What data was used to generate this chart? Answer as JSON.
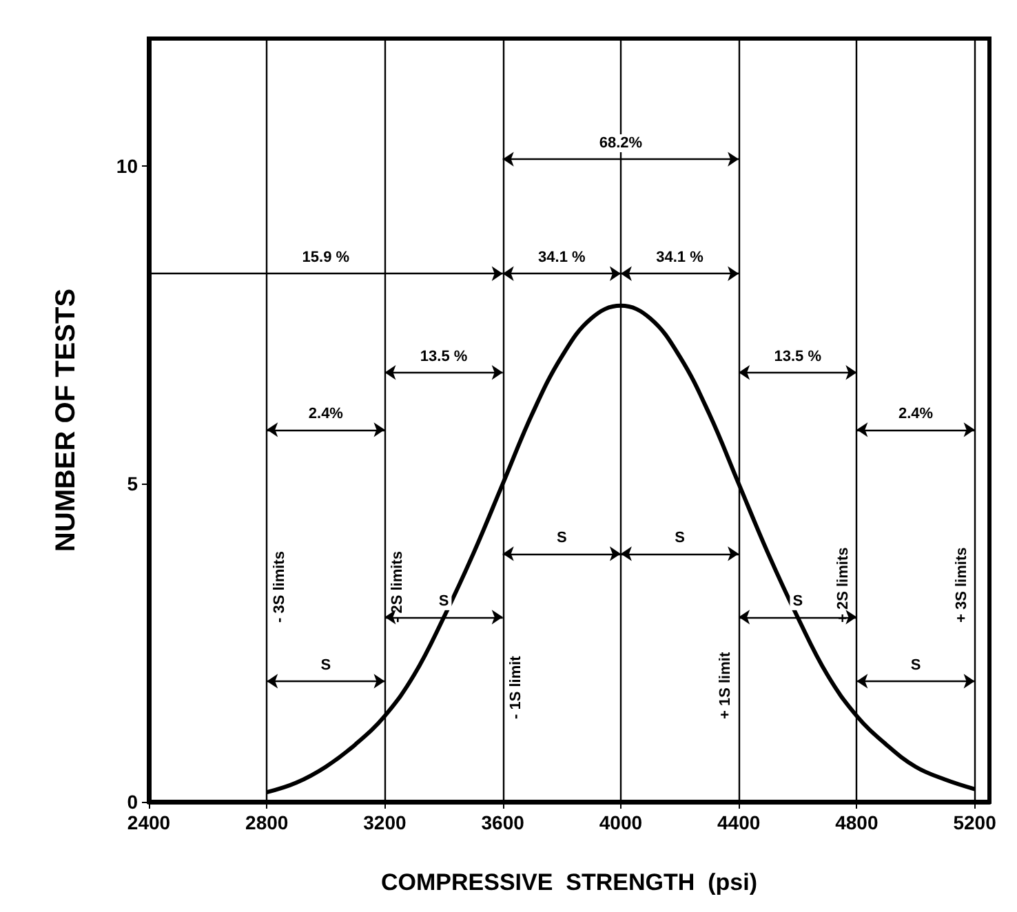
{
  "chart_data": {
    "type": "line",
    "xlabel": "COMPRESSIVE  STRENGTH  (psi)",
    "ylabel": "NUMBER OF TESTS",
    "x": [
      2800,
      2900,
      3000,
      3100,
      3200,
      3300,
      3400,
      3500,
      3600,
      3700,
      3800,
      3900,
      4000,
      4100,
      4200,
      4300,
      4400,
      4500,
      4600,
      4700,
      4800,
      4900,
      5000,
      5100,
      5200
    ],
    "series": [
      {
        "color": "#000000",
        "values": [
          0.15,
          0.3,
          0.55,
          0.9,
          1.35,
          2.0,
          2.9,
          3.9,
          5.0,
          6.1,
          7.0,
          7.6,
          7.8,
          7.6,
          7.0,
          6.1,
          5.0,
          3.9,
          2.9,
          2.0,
          1.35,
          0.9,
          0.55,
          0.35,
          0.2
        ]
      }
    ],
    "xlim": [
      2400,
      5250
    ],
    "xticks": [
      2400,
      2800,
      3200,
      3600,
      4000,
      4400,
      4800,
      5200
    ],
    "ylim": [
      0,
      12
    ],
    "yticks": [
      0,
      5,
      10
    ],
    "grid": false,
    "marker": "none",
    "line_style": "solid",
    "ref_lines": [
      {
        "axis": "x",
        "value": 2800,
        "label": "- 3S limits"
      },
      {
        "axis": "x",
        "value": 3200,
        "label": "- 2S limits"
      },
      {
        "axis": "x",
        "value": 3600,
        "label": "- 1S limit"
      },
      {
        "axis": "x",
        "value": 4000,
        "label": null
      },
      {
        "axis": "x",
        "value": 4400,
        "label": "+ 1S limit"
      },
      {
        "axis": "x",
        "value": 4800,
        "label": "+ 2S limits"
      },
      {
        "axis": "x",
        "value": 5200,
        "label": "+ 3S limits"
      }
    ],
    "annotations": [
      "68.2%",
      "15.9 %",
      "34.1 %",
      "34.1 %",
      "13.5 %",
      "13.5 %",
      "2.4%",
      "2.4%",
      "S",
      "S",
      "S",
      "S",
      "S",
      "S"
    ]
  }
}
